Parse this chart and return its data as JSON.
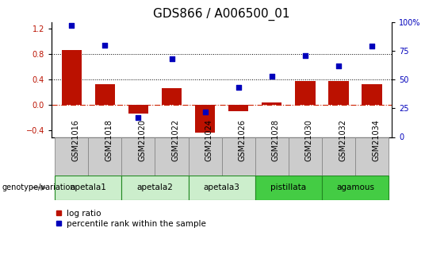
{
  "title": "GDS866 / A006500_01",
  "samples": [
    "GSM21016",
    "GSM21018",
    "GSM21020",
    "GSM21022",
    "GSM21024",
    "GSM21026",
    "GSM21028",
    "GSM21030",
    "GSM21032",
    "GSM21034"
  ],
  "log_ratio": [
    0.86,
    0.32,
    -0.13,
    0.27,
    -0.43,
    -0.1,
    0.04,
    0.37,
    0.37,
    0.32
  ],
  "percentile_rank": [
    97,
    80,
    17,
    68,
    22,
    43,
    53,
    71,
    62,
    79
  ],
  "group_spans": [
    {
      "name": "apetala1",
      "start": 0,
      "end": 1,
      "color": "#cceecc"
    },
    {
      "name": "apetala2",
      "start": 2,
      "end": 3,
      "color": "#cceecc"
    },
    {
      "name": "apetala3",
      "start": 4,
      "end": 5,
      "color": "#cceecc"
    },
    {
      "name": "pistillata",
      "start": 6,
      "end": 7,
      "color": "#44cc44"
    },
    {
      "name": "agamous",
      "start": 8,
      "end": 9,
      "color": "#44cc44"
    }
  ],
  "ylim_left": [
    -0.5,
    1.3
  ],
  "ylim_right": [
    0,
    100
  ],
  "yticks_left": [
    -0.4,
    0.0,
    0.4,
    0.8,
    1.2
  ],
  "yticks_right": [
    0,
    25,
    50,
    75,
    100
  ],
  "bar_color": "#bb1100",
  "dot_color": "#0000bb",
  "zero_line_color": "#cc2200",
  "dotted_line_y": [
    0.4,
    0.8
  ],
  "title_fontsize": 11,
  "tick_fontsize": 7,
  "sample_box_color": "#cccccc",
  "sample_box_edge": "#888888",
  "group_box_edge": "#228822"
}
